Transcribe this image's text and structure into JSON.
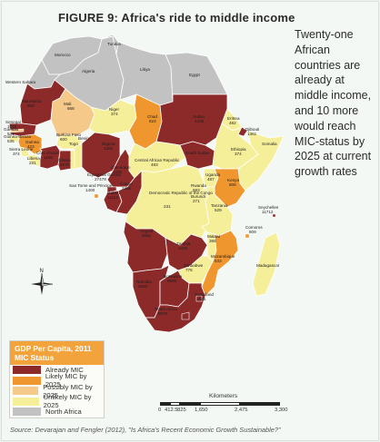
{
  "figure": {
    "title": "FIGURE 9: Africa's ride to middle income",
    "side_note": "Twenty-one African countries are already at middle income, and 10 more would reach MIC-status by 2025 at current growth rates",
    "source": "Source: Devarajan and Fengler (2012), \"Is Africa's Recent Economic Growth Sustainable?\""
  },
  "colors": {
    "already_mic": "#8c2a2a",
    "likely_mic_2025": "#f0962e",
    "possibly_mic_2025": "#f4c98a",
    "unlikely_mic_2025": "#f6ef9a",
    "north_africa": "#c2c2c2",
    "sea": "#f4f8f4"
  },
  "legend": {
    "title": "GDP Per Capita, 2011",
    "subtitle": "MIC Status",
    "items": [
      {
        "label": "Already MIC",
        "color": "#8c2a2a"
      },
      {
        "label": "Likely MIC by 2025",
        "color": "#f0962e"
      },
      {
        "label": "Possibly MIC by 2025",
        "color": "#f4c98a"
      },
      {
        "label": "Unlikely MIC by 2025",
        "color": "#f6ef9a"
      },
      {
        "label": "North Africa",
        "color": "#c2c2c2"
      }
    ]
  },
  "scale": {
    "title": "Kilometers",
    "ticks": [
      "0",
      "412.5",
      "825",
      "1,650",
      "2,475",
      "3,300"
    ]
  },
  "compass": {
    "label": "N"
  },
  "countries": [
    {
      "name": "Tunisia",
      "value": ""
    },
    {
      "name": "Morocco",
      "value": ""
    },
    {
      "name": "Algeria",
      "value": ""
    },
    {
      "name": "Libya",
      "value": ""
    },
    {
      "name": "Egypt",
      "value": ""
    },
    {
      "name": "Western Sahara",
      "value": ""
    },
    {
      "name": "Mauritania",
      "value": "966"
    },
    {
      "name": "Mali",
      "value": "668"
    },
    {
      "name": "Niger",
      "value": "374"
    },
    {
      "name": "Chad",
      "value": "823"
    },
    {
      "name": "Sudan",
      "value": "1235"
    },
    {
      "name": "Eritrea",
      "value": "482"
    },
    {
      "name": "Djibouti",
      "value": "1361"
    },
    {
      "name": "Ethiopia",
      "value": "374"
    },
    {
      "name": "Somalia",
      "value": ""
    },
    {
      "name": "South Sudan",
      "value": ""
    },
    {
      "name": "Senegal",
      "value": "1076"
    },
    {
      "name": "Gambia",
      "value": "531"
    },
    {
      "name": "Guinea-Bissau",
      "value": "535"
    },
    {
      "name": "Guinea",
      "value": "423"
    },
    {
      "name": "Sierra Leone",
      "value": "374"
    },
    {
      "name": "Liberia",
      "value": "231"
    },
    {
      "name": "Côte d'Ivoire",
      "value": "1195"
    },
    {
      "name": "Burkina Faso",
      "value": "600"
    },
    {
      "name": "Ghana",
      "value": "1570"
    },
    {
      "name": "Togo",
      "value": ""
    },
    {
      "name": "Benin",
      "value": ""
    },
    {
      "name": "Nigeria",
      "value": "1452"
    },
    {
      "name": "Cameroon",
      "value": "1260"
    },
    {
      "name": "Central African Republic",
      "value": "483"
    },
    {
      "name": "Equatorial Guinea",
      "value": "27478"
    },
    {
      "name": "Sao Tome and Principe",
      "value": "1400"
    },
    {
      "name": "Gabon",
      "value": "11113"
    },
    {
      "name": "Congo",
      "value": "3485"
    },
    {
      "name": "Democratic Republic of the Congo",
      "value": "231"
    },
    {
      "name": "Uganda",
      "value": "487"
    },
    {
      "name": "Kenya",
      "value": "808"
    },
    {
      "name": "Rwanda",
      "value": "583"
    },
    {
      "name": "Burundi",
      "value": "271"
    },
    {
      "name": "Tanzania",
      "value": "529"
    },
    {
      "name": "Seychelles",
      "value": "11712"
    },
    {
      "name": "Comoros",
      "value": "809"
    },
    {
      "name": "Angola",
      "value": "5061"
    },
    {
      "name": "Zambia",
      "value": "1425"
    },
    {
      "name": "Malawi",
      "value": "365"
    },
    {
      "name": "Mozambique",
      "value": "533"
    },
    {
      "name": "Madagascar",
      "value": ""
    },
    {
      "name": "Zimbabwe",
      "value": "776"
    },
    {
      "name": "Namibia",
      "value": "5293"
    },
    {
      "name": "Botswana",
      "value": "8680"
    },
    {
      "name": "Swaziland",
      "value": "3425"
    },
    {
      "name": "South Africa",
      "value": "8070"
    }
  ]
}
